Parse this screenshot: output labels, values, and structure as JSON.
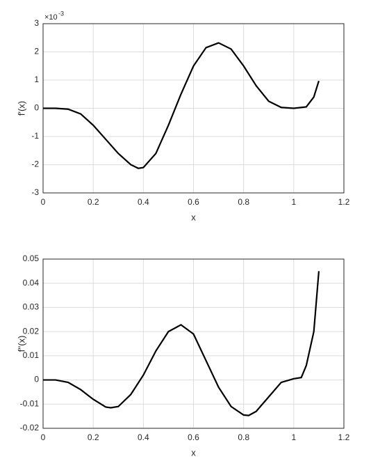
{
  "chart_data": [
    {
      "type": "line",
      "xlabel": "x",
      "ylabel": "f'(x)",
      "y_exponent": {
        "base": "×10",
        "power": "-3"
      },
      "xlim": [
        0,
        1.2
      ],
      "xticks": [
        0,
        0.2,
        0.4,
        0.6,
        0.8,
        1,
        1.2
      ],
      "ylim": [
        -3,
        3
      ],
      "yticks": [
        -3,
        -2,
        -1,
        0,
        1,
        2,
        3
      ],
      "grid": true,
      "series": [
        {
          "color": "#000000",
          "x": [
            0,
            0.05,
            0.1,
            0.15,
            0.2,
            0.25,
            0.3,
            0.35,
            0.38,
            0.4,
            0.45,
            0.5,
            0.55,
            0.6,
            0.65,
            0.7,
            0.75,
            0.8,
            0.85,
            0.9,
            0.95,
            1.0,
            1.05,
            1.08,
            1.1
          ],
          "values": [
            0,
            0,
            -0.03,
            -0.2,
            -0.6,
            -1.1,
            -1.6,
            -2.0,
            -2.13,
            -2.1,
            -1.6,
            -0.6,
            0.5,
            1.5,
            2.15,
            2.32,
            2.1,
            1.5,
            0.8,
            0.25,
            0.03,
            0,
            0.05,
            0.4,
            0.97
          ]
        }
      ]
    },
    {
      "type": "line",
      "xlabel": "x",
      "ylabel": "f''(x)",
      "xlim": [
        0,
        1.2
      ],
      "xticks": [
        0,
        0.2,
        0.4,
        0.6,
        0.8,
        1,
        1.2
      ],
      "ylim": [
        -0.02,
        0.05
      ],
      "yticks": [
        -0.02,
        -0.01,
        0,
        0.01,
        0.02,
        0.03,
        0.04,
        0.05
      ],
      "grid": true,
      "series": [
        {
          "color": "#000000",
          "x": [
            0,
            0.05,
            0.1,
            0.15,
            0.2,
            0.25,
            0.27,
            0.3,
            0.35,
            0.4,
            0.45,
            0.5,
            0.55,
            0.6,
            0.65,
            0.7,
            0.75,
            0.8,
            0.82,
            0.85,
            0.9,
            0.95,
            1.0,
            1.03,
            1.05,
            1.08,
            1.1
          ],
          "values": [
            0,
            0,
            -0.001,
            -0.004,
            -0.008,
            -0.0112,
            -0.0115,
            -0.011,
            -0.006,
            0.002,
            0.012,
            0.02,
            0.0228,
            0.019,
            0.008,
            -0.003,
            -0.011,
            -0.0145,
            -0.0147,
            -0.013,
            -0.007,
            -0.001,
            0.0005,
            0.001,
            0.006,
            0.02,
            0.045
          ]
        }
      ]
    }
  ]
}
